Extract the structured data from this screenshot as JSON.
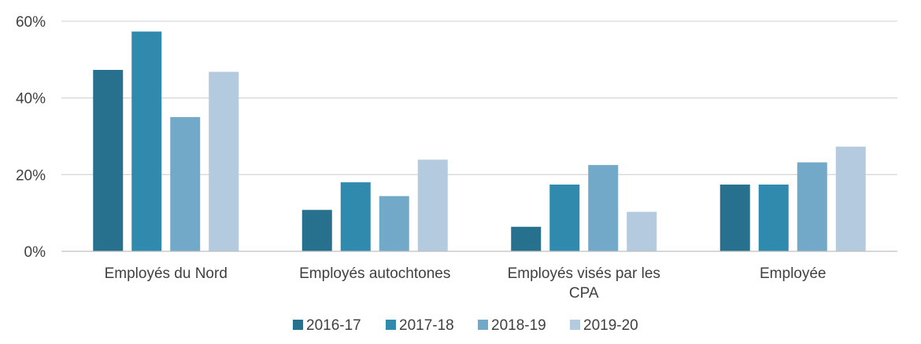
{
  "chart_data": {
    "type": "bar",
    "title": "",
    "xlabel": "",
    "ylabel": "",
    "ylim": [
      0,
      60
    ],
    "yticks": [
      0,
      20,
      40,
      60
    ],
    "ytick_labels": [
      "0%",
      "20%",
      "40%",
      "60%"
    ],
    "grid": true,
    "legend_position": "bottom",
    "categories": [
      [
        "Employés du Nord"
      ],
      [
        "Employés autochtones"
      ],
      [
        "Employés visés par les",
        "CPA"
      ],
      [
        "Employée"
      ]
    ],
    "series": [
      {
        "name": "2016-17",
        "color": "#27718f",
        "values": [
          47.3,
          10.8,
          6.4,
          17.4
        ]
      },
      {
        "name": "2017-18",
        "color": "#2f8aae",
        "values": [
          57.3,
          18.0,
          17.4,
          17.4
        ]
      },
      {
        "name": "2018-19",
        "color": "#73a9c8",
        "values": [
          35.0,
          14.4,
          22.5,
          23.2
        ]
      },
      {
        "name": "2019-20",
        "color": "#b4cade",
        "values": [
          46.8,
          23.9,
          10.3,
          27.3
        ]
      }
    ]
  }
}
